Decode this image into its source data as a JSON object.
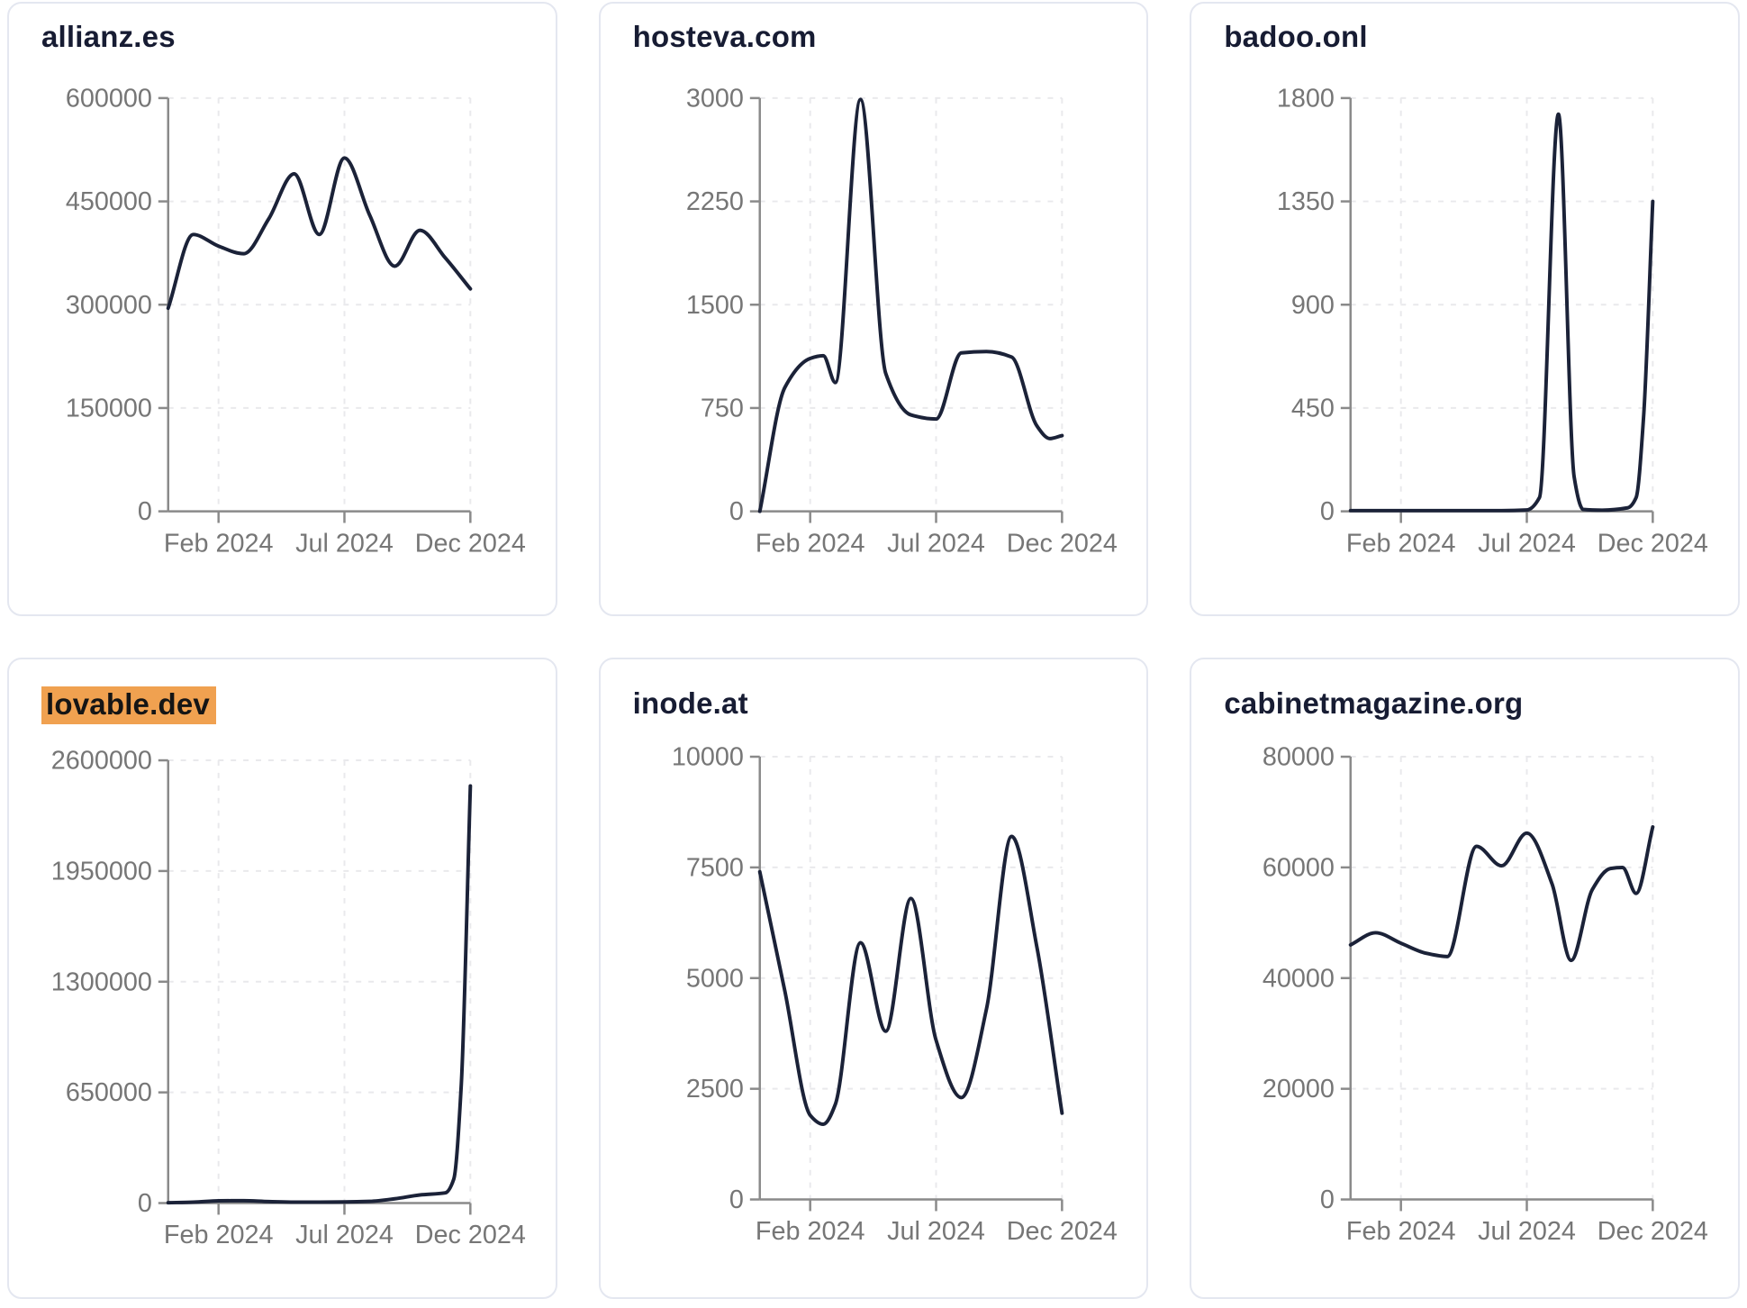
{
  "page": {
    "background": "#ffffff",
    "card_background": "#ffffff",
    "card_border_color": "#e4e7f0",
    "title_color": "#171c33",
    "highlight_background": "#f0a150",
    "highlight_text_color": "#151515",
    "line_color": "#1b2238",
    "axis_color": "#8a8a8a",
    "tick_label_color": "#767676",
    "grid_color": "#e9e9ec"
  },
  "chart_data": [
    {
      "type": "line",
      "title": "allianz.es",
      "highlighted": false,
      "row": 0,
      "ylim": [
        0,
        600000
      ],
      "y_ticks": [
        0,
        150000,
        300000,
        450000,
        600000
      ],
      "x_ticks": [
        {
          "label": "Feb 2024",
          "x": 0.1667
        },
        {
          "label": "Jul 2024",
          "x": 0.5833
        },
        {
          "label": "Dec 2024",
          "x": 1.0
        }
      ],
      "grid": true,
      "points": [
        {
          "x": 0.0,
          "y": 295000
        },
        {
          "x": 0.083,
          "y": 402000
        },
        {
          "x": 0.167,
          "y": 385000
        },
        {
          "x": 0.25,
          "y": 374000
        },
        {
          "x": 0.333,
          "y": 425000
        },
        {
          "x": 0.417,
          "y": 490000
        },
        {
          "x": 0.5,
          "y": 402000
        },
        {
          "x": 0.583,
          "y": 513000
        },
        {
          "x": 0.667,
          "y": 430000
        },
        {
          "x": 0.75,
          "y": 356000
        },
        {
          "x": 0.833,
          "y": 408000
        },
        {
          "x": 0.917,
          "y": 368000
        },
        {
          "x": 1.0,
          "y": 323000
        }
      ]
    },
    {
      "type": "line",
      "title": "hosteva.com",
      "highlighted": false,
      "row": 0,
      "ylim": [
        0,
        3000
      ],
      "y_ticks": [
        0,
        750,
        1500,
        2250,
        3000
      ],
      "x_ticks": [
        {
          "label": "Feb 2024",
          "x": 0.1667
        },
        {
          "label": "Jul 2024",
          "x": 0.5833
        },
        {
          "label": "Dec 2024",
          "x": 1.0
        }
      ],
      "grid": true,
      "points": [
        {
          "x": 0.0,
          "y": 0
        },
        {
          "x": 0.083,
          "y": 900
        },
        {
          "x": 0.167,
          "y": 1110
        },
        {
          "x": 0.21,
          "y": 1130
        },
        {
          "x": 0.25,
          "y": 935
        },
        {
          "x": 0.333,
          "y": 2990
        },
        {
          "x": 0.417,
          "y": 1000
        },
        {
          "x": 0.5,
          "y": 700
        },
        {
          "x": 0.583,
          "y": 670
        },
        {
          "x": 0.667,
          "y": 1150
        },
        {
          "x": 0.75,
          "y": 1160
        },
        {
          "x": 0.833,
          "y": 1120
        },
        {
          "x": 0.917,
          "y": 620
        },
        {
          "x": 0.96,
          "y": 528
        },
        {
          "x": 1.0,
          "y": 550
        }
      ]
    },
    {
      "type": "line",
      "title": "badoo.onl",
      "highlighted": false,
      "row": 0,
      "ylim": [
        0,
        1800
      ],
      "y_ticks": [
        0,
        450,
        900,
        1350,
        1800
      ],
      "x_ticks": [
        {
          "label": "Feb 2024",
          "x": 0.1667
        },
        {
          "label": "Jul 2024",
          "x": 0.5833
        },
        {
          "label": "Dec 2024",
          "x": 1.0
        }
      ],
      "grid": true,
      "points": [
        {
          "x": 0.0,
          "y": 3
        },
        {
          "x": 0.083,
          "y": 3
        },
        {
          "x": 0.167,
          "y": 3
        },
        {
          "x": 0.25,
          "y": 3
        },
        {
          "x": 0.333,
          "y": 3
        },
        {
          "x": 0.417,
          "y": 3
        },
        {
          "x": 0.5,
          "y": 3
        },
        {
          "x": 0.583,
          "y": 6
        },
        {
          "x": 0.625,
          "y": 60
        },
        {
          "x": 0.688,
          "y": 1730
        },
        {
          "x": 0.74,
          "y": 150
        },
        {
          "x": 0.77,
          "y": 8
        },
        {
          "x": 0.833,
          "y": 5
        },
        {
          "x": 0.917,
          "y": 15
        },
        {
          "x": 0.945,
          "y": 60
        },
        {
          "x": 0.97,
          "y": 420
        },
        {
          "x": 1.0,
          "y": 1350
        }
      ]
    },
    {
      "type": "line",
      "title": "lovable.dev",
      "highlighted": true,
      "row": 1,
      "ylim": [
        0,
        2600000
      ],
      "y_ticks": [
        0,
        650000,
        1300000,
        1950000,
        2600000
      ],
      "x_ticks": [
        {
          "label": "Feb 2024",
          "x": 0.1667
        },
        {
          "label": "Jul 2024",
          "x": 0.5833
        },
        {
          "label": "Dec 2024",
          "x": 1.0
        }
      ],
      "grid": true,
      "points": [
        {
          "x": 0.0,
          "y": 2000
        },
        {
          "x": 0.083,
          "y": 5000
        },
        {
          "x": 0.167,
          "y": 13000
        },
        {
          "x": 0.25,
          "y": 14000
        },
        {
          "x": 0.333,
          "y": 9000
        },
        {
          "x": 0.417,
          "y": 6000
        },
        {
          "x": 0.5,
          "y": 6000
        },
        {
          "x": 0.583,
          "y": 7000
        },
        {
          "x": 0.667,
          "y": 10000
        },
        {
          "x": 0.75,
          "y": 25000
        },
        {
          "x": 0.833,
          "y": 48000
        },
        {
          "x": 0.917,
          "y": 60000
        },
        {
          "x": 0.945,
          "y": 140000
        },
        {
          "x": 0.97,
          "y": 700000
        },
        {
          "x": 1.0,
          "y": 2450000
        }
      ]
    },
    {
      "type": "line",
      "title": "inode.at",
      "highlighted": false,
      "row": 1,
      "ylim": [
        0,
        10000
      ],
      "y_ticks": [
        0,
        2500,
        5000,
        7500,
        10000
      ],
      "x_ticks": [
        {
          "label": "Feb 2024",
          "x": 0.1667
        },
        {
          "label": "Jul 2024",
          "x": 0.5833
        },
        {
          "label": "Dec 2024",
          "x": 1.0
        }
      ],
      "grid": true,
      "points": [
        {
          "x": 0.0,
          "y": 7400
        },
        {
          "x": 0.083,
          "y": 4700
        },
        {
          "x": 0.167,
          "y": 1900
        },
        {
          "x": 0.21,
          "y": 1700
        },
        {
          "x": 0.25,
          "y": 2150
        },
        {
          "x": 0.333,
          "y": 5800
        },
        {
          "x": 0.417,
          "y": 3800
        },
        {
          "x": 0.5,
          "y": 6800
        },
        {
          "x": 0.583,
          "y": 3600
        },
        {
          "x": 0.667,
          "y": 2300
        },
        {
          "x": 0.75,
          "y": 4300
        },
        {
          "x": 0.833,
          "y": 8200
        },
        {
          "x": 0.917,
          "y": 5700
        },
        {
          "x": 1.0,
          "y": 1950
        }
      ]
    },
    {
      "type": "line",
      "title": "cabinetmagazine.org",
      "highlighted": false,
      "row": 1,
      "ylim": [
        0,
        80000
      ],
      "y_ticks": [
        0,
        20000,
        40000,
        60000,
        80000
      ],
      "x_ticks": [
        {
          "label": "Feb 2024",
          "x": 0.1667
        },
        {
          "label": "Jul 2024",
          "x": 0.5833
        },
        {
          "label": "Dec 2024",
          "x": 1.0
        }
      ],
      "grid": true,
      "points": [
        {
          "x": 0.0,
          "y": 46000
        },
        {
          "x": 0.083,
          "y": 48200
        },
        {
          "x": 0.167,
          "y": 46300
        },
        {
          "x": 0.25,
          "y": 44500
        },
        {
          "x": 0.32,
          "y": 43900
        },
        {
          "x": 0.417,
          "y": 63800
        },
        {
          "x": 0.5,
          "y": 60300
        },
        {
          "x": 0.583,
          "y": 66200
        },
        {
          "x": 0.667,
          "y": 57000
        },
        {
          "x": 0.73,
          "y": 43200
        },
        {
          "x": 0.8,
          "y": 56000
        },
        {
          "x": 0.86,
          "y": 59800
        },
        {
          "x": 0.9,
          "y": 60000
        },
        {
          "x": 0.945,
          "y": 55300
        },
        {
          "x": 1.0,
          "y": 67300
        }
      ]
    }
  ]
}
